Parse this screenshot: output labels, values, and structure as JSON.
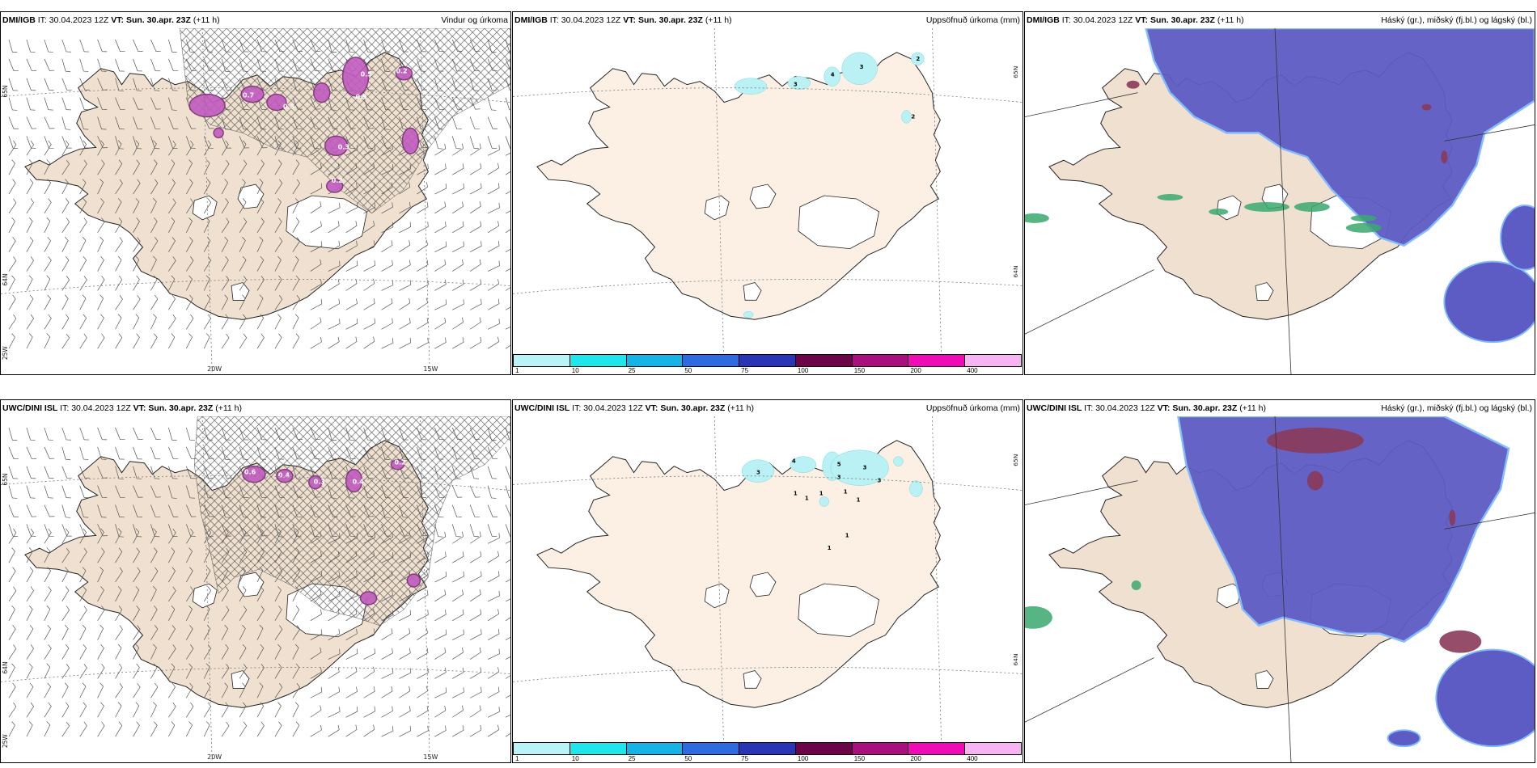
{
  "rows": [
    {
      "panels": [
        {
          "model": "DMI/IGB",
          "init_label": "IT:",
          "init": "30.04.2023 12Z",
          "vt_label": "VT:",
          "vt": "Sun. 30.apr. 23Z",
          "lead": "(+11 h)",
          "title": "Vindur og úrkoma",
          "type": "wind",
          "lat_labels": [
            "65N",
            "64N",
            "25W"
          ],
          "lon_labels": [
            "20W",
            "15W"
          ],
          "precip_values": [
            "0.7",
            "0.5",
            "0.5",
            "0.3",
            "0.3",
            "0.2",
            "0.2"
          ]
        },
        {
          "model": "DMI/IGB",
          "init_label": "IT:",
          "init": "30.04.2023 12Z",
          "vt_label": "VT:",
          "vt": "Sun. 30.apr. 23Z",
          "lead": "(+11 h)",
          "title": "Uppsöfnuð úrkoma (mm)",
          "type": "accum",
          "lat_labels": [
            "65N",
            "64N"
          ],
          "accum_values": [
            "3",
            "4",
            "3",
            "2",
            "2"
          ]
        },
        {
          "model": "DMI/IGB",
          "init_label": "IT:",
          "init": "30.04.2023 12Z",
          "vt_label": "VT:",
          "vt": "Sun. 30.apr. 23Z",
          "lead": "(+11 h)",
          "title": "Háský (gr.), miðský (fj.bl.) og lágský (bl.)",
          "type": "cloud"
        }
      ]
    },
    {
      "panels": [
        {
          "model": "UWC/DINI ISL",
          "init_label": "IT:",
          "init": "30.04.2023 12Z",
          "vt_label": "VT:",
          "vt": "Sun. 30.apr. 23Z",
          "lead": "(+11 h)",
          "title": "",
          "type": "wind",
          "lat_labels": [
            "65N",
            "64N",
            "25W"
          ],
          "lon_labels": [
            "20W",
            "15W"
          ],
          "precip_values": [
            "0.6",
            "0.4",
            "0.4",
            "0.3",
            "0.2"
          ]
        },
        {
          "model": "UWC/DINI ISL",
          "init_label": "IT:",
          "init": "30.04.2023 12Z",
          "vt_label": "VT:",
          "vt": "Sun. 30.apr. 23Z",
          "lead": "(+11 h)",
          "title": "Uppsöfnuð úrkoma (mm)",
          "type": "accum",
          "lat_labels": [
            "65N",
            "64N"
          ],
          "accum_values": [
            "3",
            "4",
            "5",
            "3",
            "3",
            "1",
            "1",
            "1",
            "1",
            "1",
            "1",
            "3",
            "1"
          ]
        },
        {
          "model": "UWC/DINI ISL",
          "init_label": "IT:",
          "init": "30.04.2023 12Z",
          "vt_label": "VT:",
          "vt": "Sun. 30.apr. 23Z",
          "lead": "(+11 h)",
          "title": "Háský (gr.), miðský (fj.bl.) og lágský (bl.)",
          "type": "cloud"
        }
      ]
    }
  ],
  "colorbar": {
    "colors": [
      "#b8f4f6",
      "#1ee6ea",
      "#16b4e6",
      "#2e6ae0",
      "#2a34b4",
      "#6e0448",
      "#a8107e",
      "#f00cb4",
      "#f6b4f2"
    ],
    "ticks": [
      "1",
      "10",
      "25",
      "50",
      "75",
      "100",
      "150",
      "200",
      "400"
    ]
  },
  "palette": {
    "land": "#efe0cf",
    "land_light": "#fcf0e4",
    "coast": "#222222",
    "precip": "#c25cc0",
    "precip_dark": "#7a2e76",
    "accum": "#b9f1f4",
    "high_cloud": "#5d5cc4",
    "low_cloud": "#8a3a5a",
    "mid_cloud": "#3aa86e"
  }
}
